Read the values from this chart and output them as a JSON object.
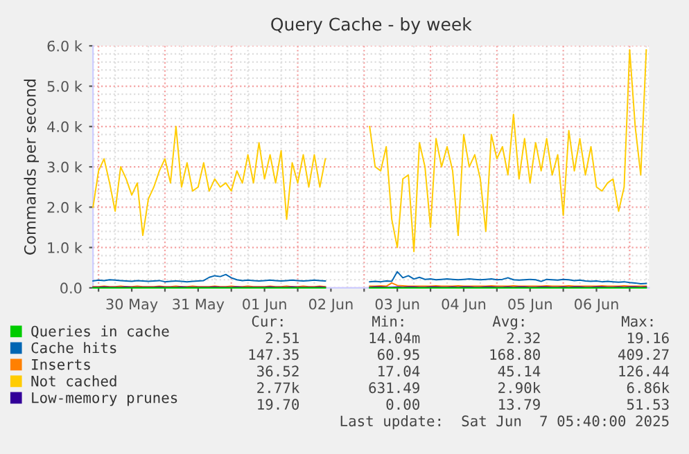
{
  "chart_data": {
    "type": "line",
    "title": "Query Cache - by week",
    "ylabel": "Commands per second",
    "x": [
      "2025-05-29T22:00",
      "2025-05-30T00:00",
      "2025-05-30T02:00",
      "2025-05-30T04:00",
      "2025-05-30T06:00",
      "2025-05-30T08:00",
      "2025-05-30T10:00",
      "2025-05-30T12:00",
      "2025-05-30T14:00",
      "2025-05-30T16:00",
      "2025-05-30T18:00",
      "2025-05-30T20:00",
      "2025-05-30T22:00",
      "2025-05-31T00:00",
      "2025-05-31T02:00",
      "2025-05-31T04:00",
      "2025-05-31T06:00",
      "2025-05-31T08:00",
      "2025-05-31T10:00",
      "2025-05-31T12:00",
      "2025-05-31T14:00",
      "2025-05-31T16:00",
      "2025-05-31T18:00",
      "2025-05-31T20:00",
      "2025-05-31T22:00",
      "2025-06-01T00:00",
      "2025-06-01T02:00",
      "2025-06-01T04:00",
      "2025-06-01T06:00",
      "2025-06-01T08:00",
      "2025-06-01T10:00",
      "2025-06-01T12:00",
      "2025-06-01T14:00",
      "2025-06-01T16:00",
      "2025-06-01T18:00",
      "2025-06-01T20:00",
      "2025-06-01T22:00",
      "2025-06-02T00:00",
      "2025-06-02T02:00",
      "2025-06-02T04:00",
      "2025-06-02T06:00",
      "2025-06-02T08:00",
      "2025-06-02T10:00",
      "2025-06-02T18:00",
      "2025-06-03T02:00",
      "2025-06-03T04:00",
      "2025-06-03T06:00",
      "2025-06-03T08:00",
      "2025-06-03T10:00",
      "2025-06-03T12:00",
      "2025-06-03T14:00",
      "2025-06-03T16:00",
      "2025-06-03T18:00",
      "2025-06-03T20:00",
      "2025-06-03T22:00",
      "2025-06-04T00:00",
      "2025-06-04T02:00",
      "2025-06-04T04:00",
      "2025-06-04T06:00",
      "2025-06-04T08:00",
      "2025-06-04T10:00",
      "2025-06-04T12:00",
      "2025-06-04T14:00",
      "2025-06-04T16:00",
      "2025-06-04T18:00",
      "2025-06-04T20:00",
      "2025-06-04T22:00",
      "2025-06-05T00:00",
      "2025-06-05T02:00",
      "2025-06-05T04:00",
      "2025-06-05T06:00",
      "2025-06-05T08:00",
      "2025-06-05T10:00",
      "2025-06-05T12:00",
      "2025-06-05T14:00",
      "2025-06-05T16:00",
      "2025-06-05T18:00",
      "2025-06-05T20:00",
      "2025-06-05T22:00",
      "2025-06-06T00:00",
      "2025-06-06T02:00",
      "2025-06-06T04:00",
      "2025-06-06T06:00",
      "2025-06-06T08:00",
      "2025-06-06T10:00",
      "2025-06-06T12:00",
      "2025-06-06T14:00",
      "2025-06-06T16:00",
      "2025-06-06T18:00",
      "2025-06-06T20:00",
      "2025-06-06T22:00",
      "2025-06-07T00:00",
      "2025-06-07T02:00",
      "2025-06-07T04:00",
      "2025-06-07T06:00"
    ],
    "series": [
      {
        "name": "Queries in cache",
        "color": "#00cc00",
        "values": [
          0,
          0,
          0,
          0,
          0,
          0,
          0,
          0,
          0,
          0,
          0,
          0,
          0,
          0,
          0,
          0,
          0,
          0,
          0,
          0,
          0,
          0,
          0,
          0,
          0,
          0,
          0,
          0,
          0,
          0,
          0,
          0,
          0,
          0,
          0,
          0,
          0,
          0,
          0,
          0,
          0,
          0,
          0,
          null,
          0,
          0,
          0,
          0,
          0,
          0,
          0,
          0,
          0,
          0,
          0,
          0,
          0,
          0,
          0,
          0,
          0,
          0,
          0,
          0,
          0,
          0,
          0,
          0,
          0,
          0,
          0,
          0,
          0,
          0,
          0,
          0,
          0,
          0,
          0,
          0,
          0,
          0,
          0,
          0,
          0,
          0,
          0,
          0,
          0,
          0,
          0,
          0,
          0,
          0,
          0
        ]
      },
      {
        "name": "Cache hits",
        "color": "#0066b3",
        "values": [
          170,
          190,
          180,
          200,
          190,
          180,
          170,
          160,
          180,
          170,
          160,
          170,
          180,
          150,
          160,
          170,
          160,
          150,
          160,
          170,
          180,
          260,
          300,
          280,
          330,
          250,
          200,
          180,
          190,
          180,
          170,
          180,
          190,
          180,
          170,
          180,
          190,
          180,
          170,
          180,
          190,
          180,
          170,
          null,
          150,
          160,
          150,
          170,
          160,
          400,
          250,
          300,
          220,
          260,
          210,
          220,
          200,
          210,
          220,
          210,
          200,
          210,
          220,
          210,
          200,
          210,
          220,
          200,
          210,
          250,
          200,
          190,
          200,
          210,
          200,
          160,
          210,
          200,
          190,
          210,
          200,
          180,
          190,
          170,
          160,
          170,
          150,
          160,
          150,
          140,
          150,
          130,
          120,
          100,
          110
        ]
      },
      {
        "name": "Inserts",
        "color": "#ff8000",
        "values": [
          30,
          30,
          40,
          30,
          30,
          40,
          30,
          30,
          40,
          30,
          30,
          30,
          40,
          30,
          30,
          40,
          30,
          30,
          40,
          30,
          30,
          30,
          40,
          30,
          30,
          40,
          30,
          30,
          40,
          30,
          30,
          30,
          40,
          30,
          30,
          40,
          30,
          30,
          40,
          30,
          30,
          40,
          30,
          null,
          40,
          40,
          50,
          40,
          120,
          60,
          50,
          40,
          40,
          40,
          40,
          40,
          50,
          40,
          40,
          40,
          50,
          40,
          40,
          40,
          40,
          40,
          50,
          40,
          40,
          40,
          50,
          40,
          40,
          40,
          40,
          40,
          50,
          40,
          40,
          40,
          50,
          40,
          40,
          40,
          40,
          40,
          50,
          40,
          40,
          40,
          50,
          40,
          40,
          40,
          40
        ]
      },
      {
        "name": "Not cached",
        "color": "#ffcc00",
        "values": [
          2000,
          2900,
          3200,
          2600,
          1900,
          3000,
          2700,
          2300,
          2600,
          1300,
          2200,
          2500,
          2900,
          3200,
          2600,
          4000,
          2500,
          3100,
          2400,
          2500,
          3100,
          2400,
          2700,
          2500,
          2600,
          2400,
          2900,
          2600,
          3300,
          2600,
          3600,
          2700,
          3300,
          2600,
          3400,
          1700,
          3100,
          2600,
          3300,
          2500,
          3300,
          2500,
          3200,
          null,
          4000,
          3000,
          2900,
          3500,
          1700,
          1000,
          2700,
          2800,
          900,
          3600,
          3000,
          1500,
          3700,
          3000,
          3500,
          2900,
          1300,
          3800,
          3000,
          3300,
          2700,
          1400,
          3800,
          3200,
          3500,
          2800,
          4300,
          2700,
          3700,
          2600,
          3600,
          2900,
          3700,
          2800,
          3300,
          1800,
          3900,
          2900,
          3700,
          2800,
          3500,
          2500,
          2400,
          2600,
          2700,
          1900,
          2500,
          5900,
          4000,
          2800,
          5900
        ]
      },
      {
        "name": "Low-memory prunes",
        "color": "#330099",
        "values": [
          10,
          10,
          20,
          10,
          10,
          10,
          20,
          10,
          10,
          10,
          10,
          10,
          20,
          10,
          10,
          10,
          20,
          10,
          10,
          10,
          10,
          10,
          20,
          10,
          10,
          10,
          20,
          10,
          10,
          10,
          10,
          10,
          20,
          10,
          10,
          10,
          20,
          10,
          10,
          10,
          10,
          20,
          10,
          null,
          10,
          20,
          20,
          10,
          10,
          20,
          10,
          20,
          20,
          10,
          10,
          20,
          20,
          10,
          10,
          20,
          10,
          20,
          20,
          10,
          10,
          20,
          20,
          10,
          10,
          20,
          10,
          20,
          20,
          10,
          10,
          20,
          20,
          10,
          10,
          20,
          10,
          20,
          20,
          10,
          10,
          20,
          20,
          10,
          10,
          20,
          10,
          20,
          20,
          10,
          20
        ]
      }
    ],
    "xlim": [
      "2025-05-29T22:00",
      "2025-06-07T07:00"
    ],
    "xticks": [
      {
        "value": "2025-05-30T00:00",
        "label": null
      },
      {
        "value": "2025-05-30T12:00",
        "label": "30 May"
      },
      {
        "value": "2025-05-31T00:00",
        "label": null
      },
      {
        "value": "2025-05-31T12:00",
        "label": "31 May"
      },
      {
        "value": "2025-06-01T00:00",
        "label": null
      },
      {
        "value": "2025-06-01T12:00",
        "label": "01 Jun"
      },
      {
        "value": "2025-06-02T00:00",
        "label": null
      },
      {
        "value": "2025-06-02T12:00",
        "label": "02 Jun"
      },
      {
        "value": "2025-06-03T00:00",
        "label": null
      },
      {
        "value": "2025-06-03T12:00",
        "label": "03 Jun"
      },
      {
        "value": "2025-06-04T00:00",
        "label": null
      },
      {
        "value": "2025-06-04T12:00",
        "label": "04 Jun"
      },
      {
        "value": "2025-06-05T00:00",
        "label": null
      },
      {
        "value": "2025-06-05T12:00",
        "label": "05 Jun"
      },
      {
        "value": "2025-06-06T00:00",
        "label": null
      },
      {
        "value": "2025-06-06T12:00",
        "label": "06 Jun"
      },
      {
        "value": "2025-06-07T00:00",
        "label": null
      }
    ],
    "ylim": [
      0,
      6000
    ],
    "yticks": [
      {
        "value": 0,
        "label": "0.0"
      },
      {
        "value": 1000,
        "label": "1.0 k"
      },
      {
        "value": 2000,
        "label": "2.0 k"
      },
      {
        "value": 3000,
        "label": "3.0 k"
      },
      {
        "value": 4000,
        "label": "4.0 k"
      },
      {
        "value": 5000,
        "label": "5.0 k"
      },
      {
        "value": 6000,
        "label": "6.0 k"
      }
    ],
    "grid": true,
    "legend": "bottom",
    "marker": "none",
    "line_style": "solid",
    "annotations": [
      "Cur:",
      "Min:",
      "Avg:",
      "Max:",
      "2.51",
      "14.04m",
      "2.32",
      "19.16",
      "147.35",
      "60.95",
      "168.80",
      "409.27",
      "36.52",
      "17.04",
      "45.14",
      "126.44",
      "2.77k",
      "631.49",
      "2.90k",
      "6.86k",
      "19.70",
      "0.00",
      "13.79",
      "51.53",
      "Last update:  Sat Jun  7 05:40:00 2025"
    ]
  }
}
